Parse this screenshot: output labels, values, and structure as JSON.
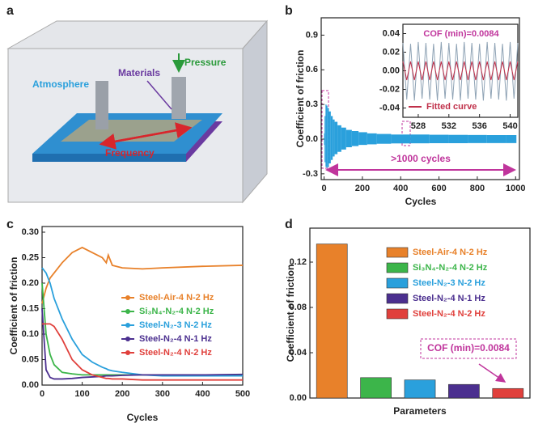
{
  "panels": [
    "a",
    "b",
    "c",
    "d"
  ],
  "diagram": {
    "labels": {
      "atmosphere": "Atmosphere",
      "materials": "Materials",
      "pressure": "Pressure",
      "frequency": "Frequency"
    }
  },
  "chart_data": [
    {
      "type": "range",
      "xlabel": "Cycles",
      "ylabel": "Coefficient of friction",
      "annotation": ">1000 cycles",
      "x": [
        0,
        5,
        10,
        15,
        20,
        30,
        40,
        50,
        60,
        80,
        100,
        130,
        160,
        200,
        250,
        300,
        400,
        500,
        600,
        700,
        800,
        900,
        1000
      ],
      "series": [
        {
          "color": "#2aa0dc",
          "values": [
            0.05,
            0.2,
            0.3,
            0.29,
            0.27,
            0.24,
            0.2,
            0.17,
            0.15,
            0.12,
            0.1,
            0.08,
            0.07,
            0.06,
            0.05,
            0.045,
            0.04,
            0.04,
            0.038,
            0.037,
            0.036,
            0.035,
            0.035
          ]
        },
        {
          "color": "#2aa0dc",
          "values": [
            -0.05,
            -0.2,
            -0.24,
            -0.25,
            -0.24,
            -0.21,
            -0.18,
            -0.15,
            -0.13,
            -0.11,
            -0.09,
            -0.07,
            -0.06,
            -0.05,
            -0.045,
            -0.04,
            -0.037,
            -0.036,
            -0.035,
            -0.035,
            -0.034,
            -0.034,
            -0.034
          ]
        }
      ],
      "xlim": [
        -15,
        1020
      ],
      "xticks": [
        0,
        200,
        400,
        600,
        800,
        1000
      ],
      "ylim": [
        -0.35,
        1.05
      ],
      "yticks": [
        -0.3,
        {
          "value": 0,
          "label": "0.0"
        },
        0.3,
        0.6,
        0.9
      ]
    },
    {
      "type": "line",
      "title": "COF (min)=0.0084",
      "x": [
        526,
        526.5,
        527,
        527.5,
        528,
        528.5,
        529,
        529.5,
        530,
        530.5,
        531,
        531.5,
        532,
        532.5,
        533,
        533.5,
        534,
        534.5,
        535,
        535.5,
        536,
        536.5,
        537,
        537.5,
        538,
        538.5,
        539,
        539.5,
        540,
        540.5,
        541
      ],
      "series": [
        {
          "color": "#8fa3b5",
          "values": [
            0.03,
            -0.031,
            0.029,
            -0.032,
            0.031,
            -0.03,
            0.03,
            -0.031,
            0.029,
            -0.032,
            0.031,
            -0.03,
            0.03,
            -0.031,
            0.029,
            -0.032,
            0.031,
            -0.03,
            0.03,
            -0.031,
            0.029,
            -0.032,
            0.031,
            -0.03,
            0.03,
            -0.031,
            0.029,
            -0.032,
            0.031,
            -0.03,
            0.03
          ]
        },
        {
          "name": "Fitted curve",
          "color": "#c0304a",
          "values": [
            0.01,
            -0.01,
            0.01,
            -0.01,
            0.01,
            -0.01,
            0.01,
            -0.01,
            0.01,
            -0.01,
            0.01,
            -0.01,
            0.01,
            -0.01,
            0.01,
            -0.01,
            0.01,
            -0.01,
            0.01,
            -0.01,
            0.01,
            -0.01,
            0.01,
            -0.01,
            0.01,
            -0.01,
            0.01,
            -0.01,
            0.01,
            -0.01,
            0.01
          ]
        }
      ],
      "xlim": [
        526,
        541
      ],
      "xticks": [
        528,
        532,
        536,
        540
      ],
      "ylim": [
        -0.05,
        0.05
      ],
      "yticks": [
        -0.04,
        -0.02,
        {
          "value": 0,
          "label": "0.00"
        },
        0.02,
        0.04
      ]
    },
    {
      "type": "line",
      "xlabel": "Cycles",
      "ylabel": "Coefficient of friction",
      "x": [
        0,
        10,
        20,
        30,
        50,
        75,
        100,
        125,
        150,
        160,
        165,
        175,
        200,
        250,
        300,
        400,
        500
      ],
      "series": [
        {
          "name": "Steel-Air-4 N-2 Hz",
          "color": "#e8812a",
          "values": [
            0.16,
            0.19,
            0.21,
            0.22,
            0.24,
            0.26,
            0.27,
            0.26,
            0.25,
            0.24,
            0.255,
            0.235,
            0.23,
            0.228,
            0.23,
            0.233,
            0.235
          ]
        },
        {
          "name": "Si₃N₄-N₂-4 N-2 Hz",
          "color": "#3cb54a",
          "values": [
            0.2,
            0.1,
            0.06,
            0.04,
            0.025,
            0.022,
            0.02,
            0.02,
            0.02,
            0.02,
            0.02,
            0.02,
            0.02,
            0.02,
            0.02,
            0.02,
            0.02
          ]
        },
        {
          "name": "Steel-N₂-3 N-2 Hz",
          "color": "#2aa0dc",
          "values": [
            0.23,
            0.22,
            0.2,
            0.17,
            0.13,
            0.09,
            0.06,
            0.045,
            0.035,
            0.032,
            0.03,
            0.028,
            0.025,
            0.02,
            0.018,
            0.018,
            0.018
          ]
        },
        {
          "name": "Steel-N₂-4 N-1 Hz",
          "color": "#4b2f8f",
          "values": [
            0.15,
            0.03,
            0.015,
            0.012,
            0.012,
            0.013,
            0.015,
            0.016,
            0.017,
            0.018,
            0.018,
            0.018,
            0.019,
            0.02,
            0.02,
            0.02,
            0.021
          ]
        },
        {
          "name": "Steel-N₂-4 N-2 Hz",
          "color": "#e0403c",
          "values": [
            0.12,
            0.12,
            0.12,
            0.115,
            0.09,
            0.05,
            0.03,
            0.02,
            0.015,
            0.013,
            0.013,
            0.012,
            0.012,
            0.01,
            0.01,
            0.01,
            0.01
          ]
        }
      ],
      "xlim": [
        0,
        500
      ],
      "xticks": [
        0,
        100,
        200,
        300,
        400,
        500
      ],
      "ylim": [
        0,
        0.3
      ],
      "yticks": [
        {
          "value": 0,
          "label": "0.00"
        },
        0.05,
        {
          "value": 0.1,
          "label": "0.10"
        },
        0.15,
        {
          "value": 0.2,
          "label": "0.20"
        },
        0.25,
        {
          "value": 0.3,
          "label": "0.30"
        }
      ]
    },
    {
      "type": "bar",
      "xlabel": "Parameters",
      "ylabel": "Coefficient of friction",
      "annotation": "COF (min)=0.0084",
      "categories": [
        "Steel-Air-4 N-2 Hz",
        "Si₃N₄-N₂-4 N-2 Hz",
        "Steel-N₂-3 N-2 Hz",
        "Steel-N₂-4 N-1 Hz",
        "Steel-N₂-4 N-2 Hz"
      ],
      "values": [
        0.136,
        0.018,
        0.016,
        0.012,
        0.0084
      ],
      "colors": [
        "#e8812a",
        "#3cb54a",
        "#2aa0dc",
        "#4b2f8f",
        "#e0403c"
      ],
      "ylim": [
        0,
        0.15
      ],
      "yticks": [
        {
          "value": 0,
          "label": "0.00"
        },
        0.04,
        0.08,
        0.12
      ]
    }
  ]
}
